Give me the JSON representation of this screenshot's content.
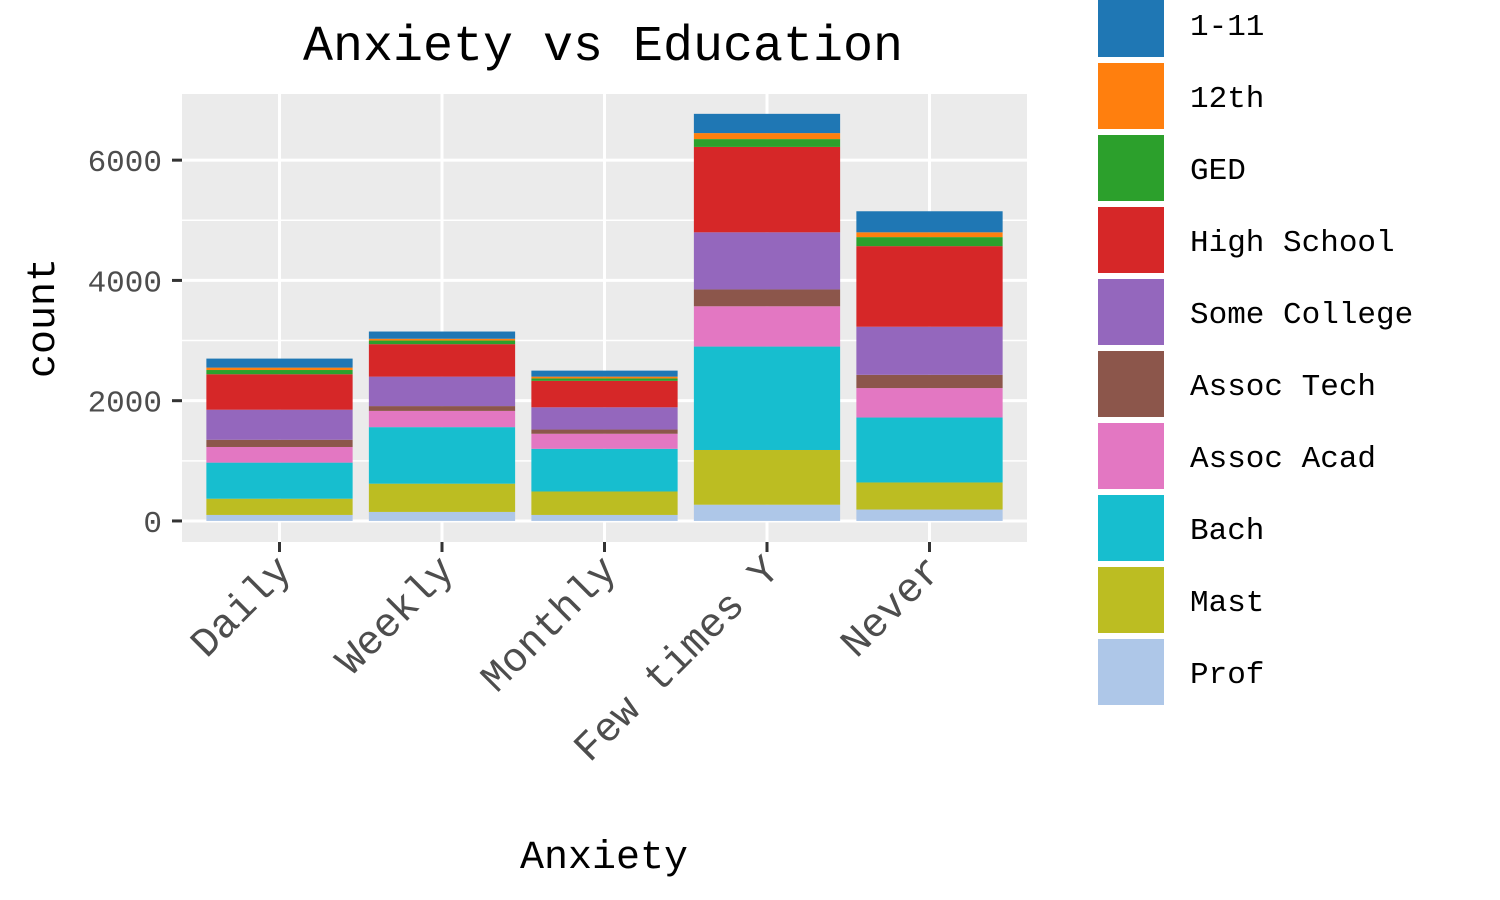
{
  "chart_data": {
    "type": "bar",
    "stacked": true,
    "title": "Anxiety vs Education",
    "xlabel": "Anxiety",
    "ylabel": "count",
    "ylim": [
      -350,
      7100
    ],
    "yticks": [
      0,
      2000,
      4000,
      6000
    ],
    "grid": true,
    "legend_position": "right",
    "categories": [
      "Daily",
      "Weekly",
      "Monthly",
      "Few times Y",
      "Never"
    ],
    "series": [
      {
        "name": "Prof",
        "color": "#aec7e8",
        "values": [
          100,
          150,
          100,
          270,
          190
        ]
      },
      {
        "name": "Mast",
        "color": "#bcbd22",
        "values": [
          270,
          470,
          390,
          910,
          450
        ]
      },
      {
        "name": "Bach",
        "color": "#17becf",
        "values": [
          600,
          940,
          710,
          1720,
          1080
        ]
      },
      {
        "name": "Assoc Acad",
        "color": "#e377c2",
        "values": [
          260,
          270,
          250,
          670,
          490
        ]
      },
      {
        "name": "Assoc Tech",
        "color": "#8c564b",
        "values": [
          120,
          80,
          70,
          280,
          220
        ]
      },
      {
        "name": "Some College",
        "color": "#9467bd",
        "values": [
          500,
          490,
          370,
          950,
          800
        ]
      },
      {
        "name": "High School",
        "color": "#d62728",
        "values": [
          590,
          540,
          440,
          1420,
          1340
        ]
      },
      {
        "name": "GED",
        "color": "#2ca02c",
        "values": [
          70,
          60,
          40,
          130,
          150
        ]
      },
      {
        "name": "12th",
        "color": "#ff7f0e",
        "values": [
          40,
          30,
          30,
          100,
          80
        ]
      },
      {
        "name": "1-11",
        "color": "#1f77b4",
        "values": [
          150,
          120,
          100,
          320,
          350
        ]
      }
    ]
  }
}
